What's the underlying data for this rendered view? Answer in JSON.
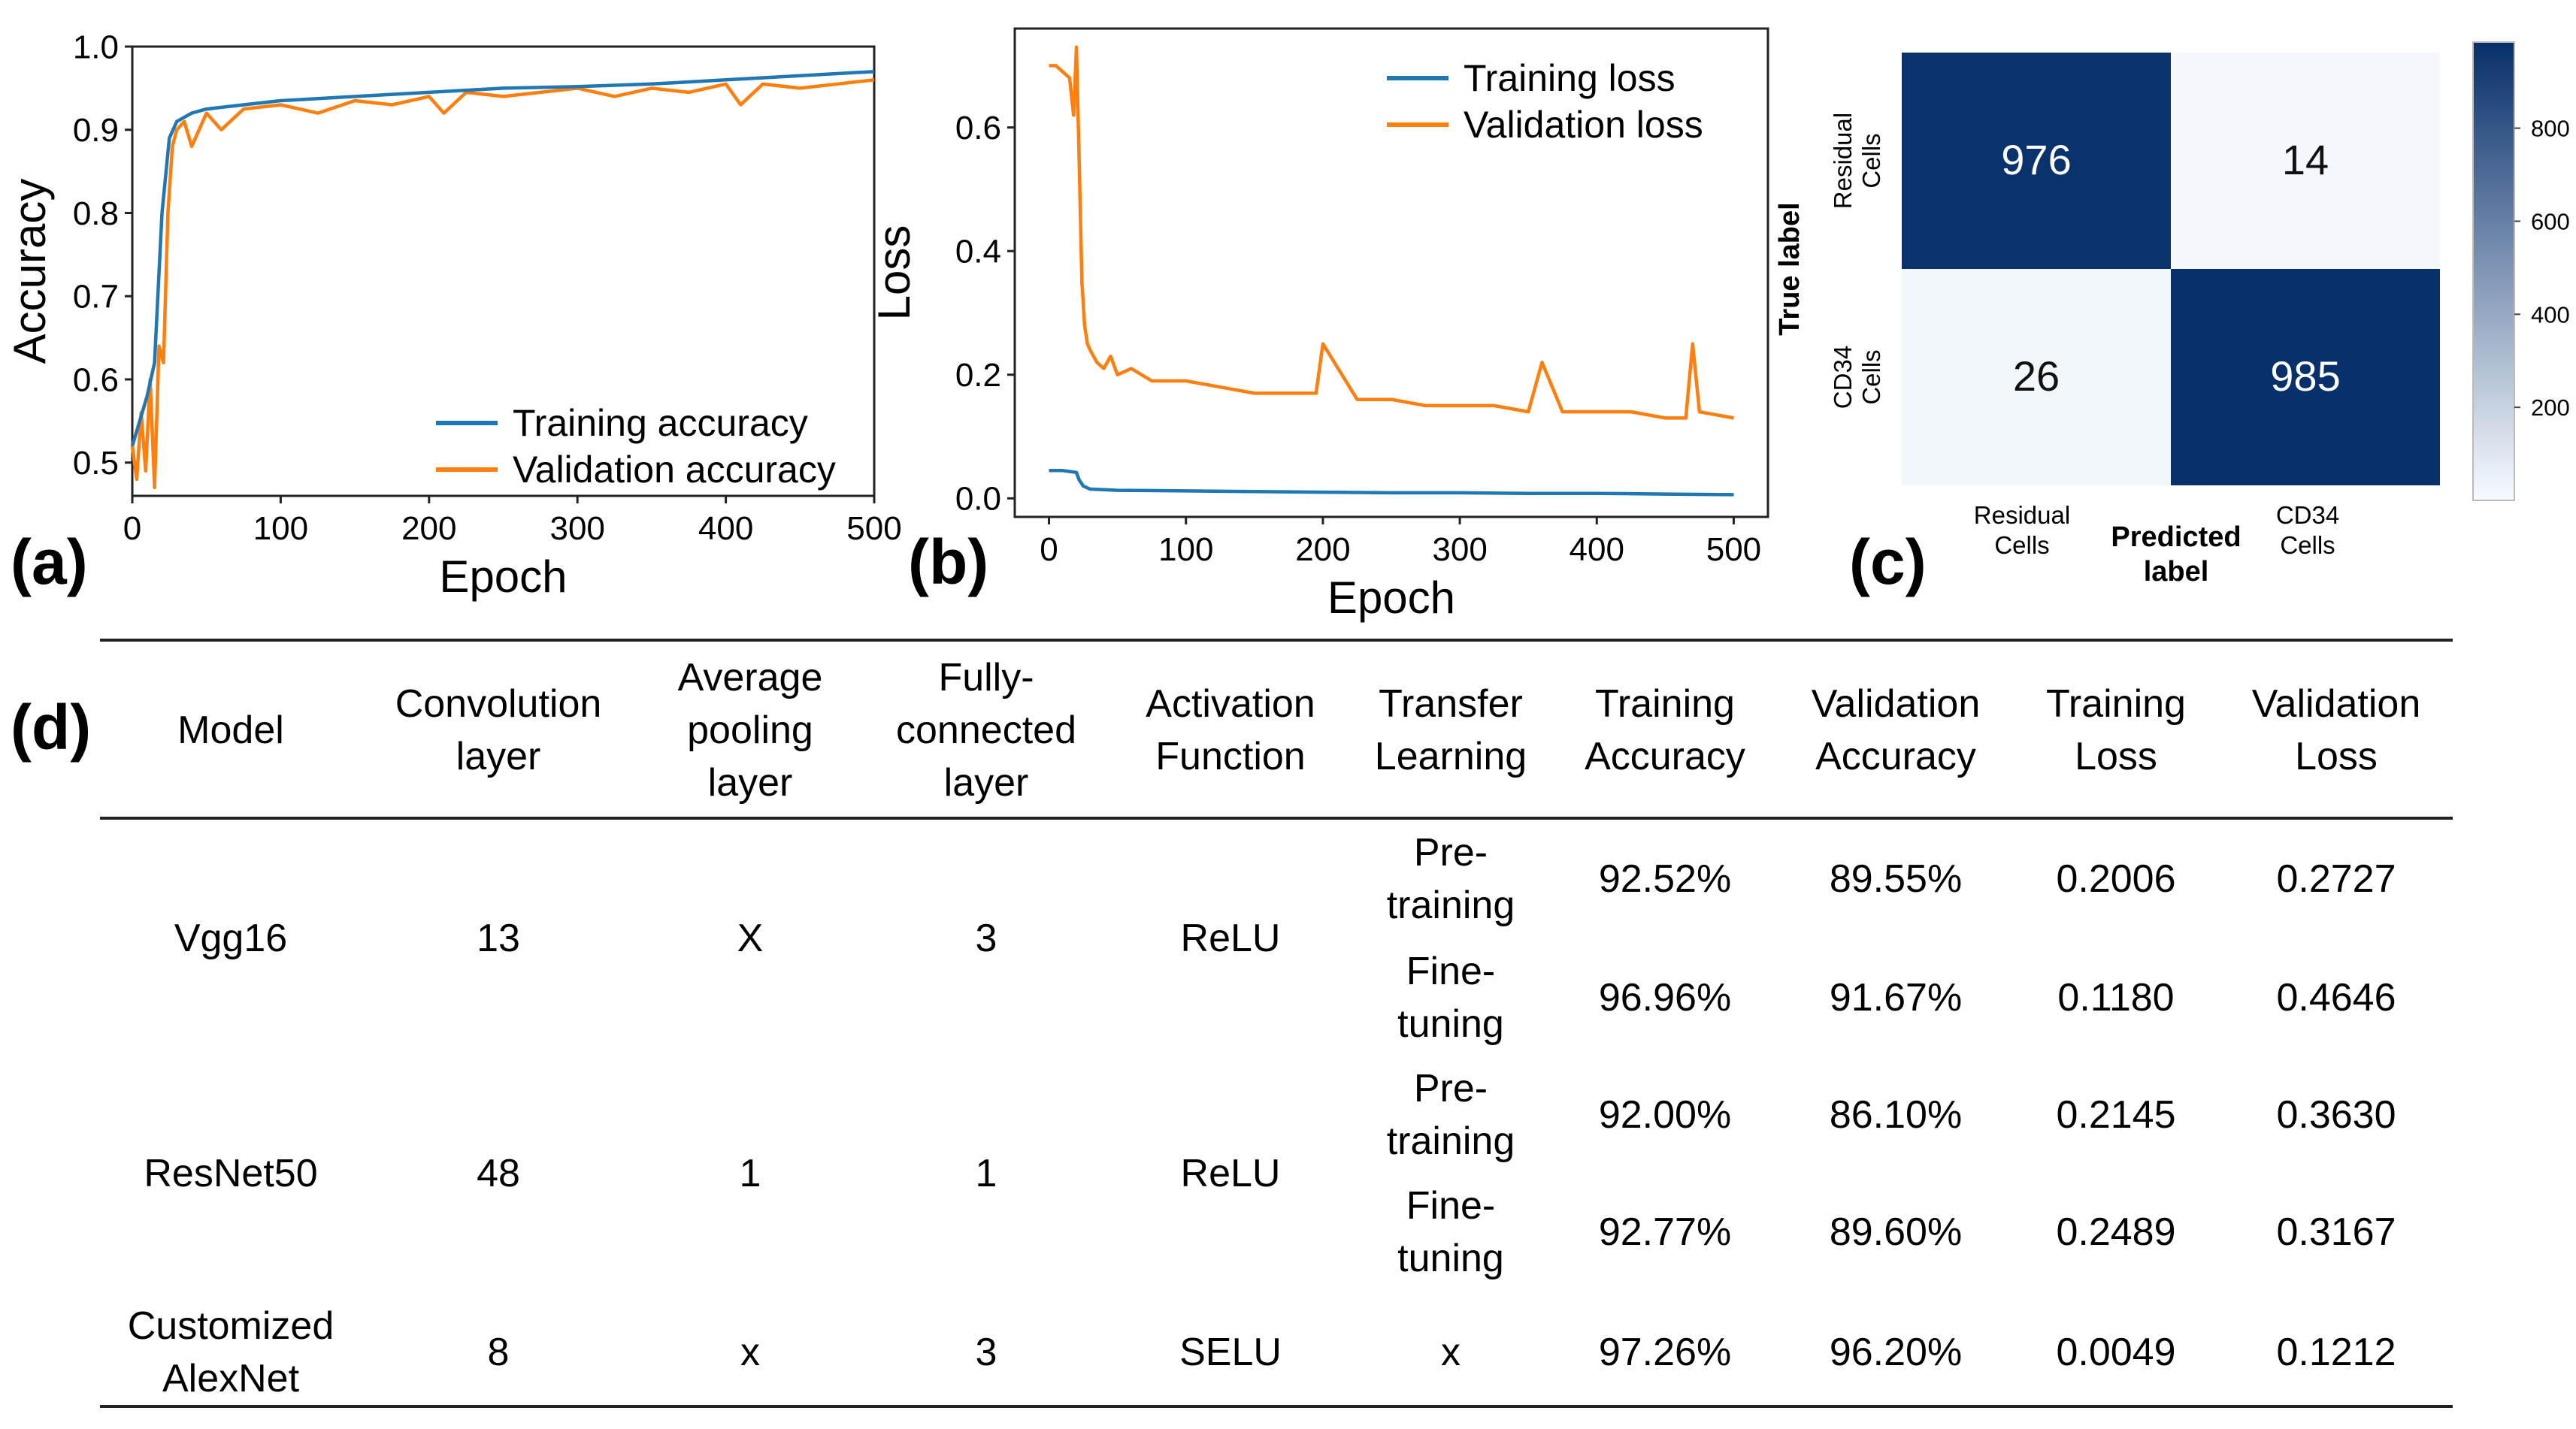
{
  "colors": {
    "train": "#1f77b4",
    "val": "#ff7f0e",
    "cm_dark": "#08306b",
    "cm_light": "#f7fbff"
  },
  "panel_labels": {
    "a": "(a)",
    "b": "(b)",
    "c": "(c)",
    "d": "(d)"
  },
  "chart_data": [
    {
      "id": "a",
      "type": "line",
      "xlabel": "Epoch",
      "ylabel": "Accuracy",
      "xlim": [
        0,
        500
      ],
      "ylim": [
        0.46,
        1.0
      ],
      "xticks": [
        0,
        100,
        200,
        300,
        400,
        500
      ],
      "yticks": [
        0.5,
        0.6,
        0.7,
        0.8,
        0.9,
        1.0
      ],
      "ytick_labels": [
        "0.5",
        "0.6",
        "0.7",
        "0.8",
        "0.9",
        "1.0"
      ],
      "legend": "bottom-right",
      "series": [
        {
          "name": "Training accuracy",
          "x": [
            0,
            5,
            10,
            15,
            20,
            25,
            30,
            40,
            50,
            75,
            100,
            150,
            200,
            250,
            300,
            350,
            400,
            450,
            500
          ],
          "y": [
            0.52,
            0.55,
            0.58,
            0.62,
            0.8,
            0.89,
            0.91,
            0.92,
            0.925,
            0.93,
            0.935,
            0.94,
            0.945,
            0.95,
            0.952,
            0.955,
            0.96,
            0.965,
            0.97
          ]
        },
        {
          "name": "Validation accuracy",
          "x": [
            0,
            3,
            6,
            9,
            12,
            15,
            18,
            21,
            24,
            27,
            30,
            35,
            40,
            50,
            60,
            75,
            100,
            125,
            150,
            175,
            200,
            210,
            225,
            250,
            275,
            300,
            325,
            350,
            375,
            400,
            410,
            425,
            450,
            475,
            500
          ],
          "y": [
            0.52,
            0.48,
            0.56,
            0.49,
            0.6,
            0.47,
            0.64,
            0.62,
            0.8,
            0.88,
            0.9,
            0.91,
            0.88,
            0.92,
            0.9,
            0.925,
            0.93,
            0.92,
            0.935,
            0.93,
            0.94,
            0.92,
            0.945,
            0.94,
            0.945,
            0.95,
            0.94,
            0.95,
            0.945,
            0.955,
            0.93,
            0.955,
            0.95,
            0.955,
            0.96
          ]
        }
      ]
    },
    {
      "id": "b",
      "type": "line",
      "xlabel": "Epoch",
      "ylabel": "Loss",
      "xlim": [
        -25,
        525
      ],
      "ylim": [
        -0.03,
        0.76
      ],
      "xticks": [
        0,
        100,
        200,
        300,
        400,
        500
      ],
      "yticks": [
        0.0,
        0.2,
        0.4,
        0.6
      ],
      "ytick_labels": [
        "0.0",
        "0.2",
        "0.4",
        "0.6"
      ],
      "legend": "top-right",
      "series": [
        {
          "name": "Training loss",
          "x": [
            0,
            10,
            20,
            22,
            25,
            30,
            40,
            50,
            100,
            150,
            200,
            250,
            300,
            350,
            400,
            450,
            500
          ],
          "y": [
            0.045,
            0.045,
            0.042,
            0.03,
            0.02,
            0.015,
            0.014,
            0.013,
            0.012,
            0.011,
            0.01,
            0.009,
            0.009,
            0.008,
            0.008,
            0.007,
            0.006
          ]
        },
        {
          "name": "Validation loss",
          "x": [
            0,
            5,
            10,
            15,
            18,
            20,
            22,
            24,
            26,
            28,
            30,
            35,
            40,
            45,
            50,
            60,
            75,
            100,
            125,
            150,
            175,
            195,
            200,
            225,
            250,
            275,
            300,
            325,
            350,
            360,
            375,
            400,
            425,
            450,
            465,
            470,
            475,
            500
          ],
          "y": [
            0.7,
            0.7,
            0.69,
            0.68,
            0.62,
            0.73,
            0.55,
            0.35,
            0.28,
            0.25,
            0.24,
            0.22,
            0.21,
            0.23,
            0.2,
            0.21,
            0.19,
            0.19,
            0.18,
            0.17,
            0.17,
            0.17,
            0.25,
            0.16,
            0.16,
            0.15,
            0.15,
            0.15,
            0.14,
            0.22,
            0.14,
            0.14,
            0.14,
            0.13,
            0.13,
            0.25,
            0.14,
            0.13
          ]
        }
      ]
    },
    {
      "id": "c",
      "type": "heatmap",
      "ylabel": "True label",
      "xlabel": "Predicted\nlabel",
      "row_labels": [
        "Residual\nCells",
        "CD34\nCells"
      ],
      "col_labels": [
        "Residual\nCells",
        "CD34\nCells"
      ],
      "values": [
        [
          976,
          14
        ],
        [
          26,
          985
        ]
      ],
      "colorbar_ticks": [
        200,
        400,
        600,
        800
      ],
      "colorbar_range": [
        0,
        985
      ]
    }
  ],
  "table": {
    "headers": [
      "Model",
      "Convolution\nlayer",
      "Average\npooling\nlayer",
      "Fully-\nconnected\nlayer",
      "Activation\nFunction",
      "Transfer\nLearning",
      "Training\nAccuracy",
      "Validation\nAccuracy",
      "Training\nLoss",
      "Validation\nLoss"
    ],
    "models": [
      {
        "model": "Vgg16",
        "conv": "13",
        "pool": "X",
        "fc": "3",
        "act": "ReLU",
        "rows": [
          {
            "transfer": "Pre-\ntraining",
            "train_acc": "92.52%",
            "val_acc": "89.55%",
            "train_loss": "0.2006",
            "val_loss": "0.2727"
          },
          {
            "transfer": "Fine-\ntuning",
            "train_acc": "96.96%",
            "val_acc": "91.67%",
            "train_loss": "0.1180",
            "val_loss": "0.4646"
          }
        ]
      },
      {
        "model": "ResNet50",
        "conv": "48",
        "pool": "1",
        "fc": "1",
        "act": "ReLU",
        "rows": [
          {
            "transfer": "Pre-\ntraining",
            "train_acc": "92.00%",
            "val_acc": "86.10%",
            "train_loss": "0.2145",
            "val_loss": "0.3630"
          },
          {
            "transfer": "Fine-\ntuning",
            "train_acc": "92.77%",
            "val_acc": "89.60%",
            "train_loss": "0.2489",
            "val_loss": "0.3167"
          }
        ]
      },
      {
        "model": "Customized\nAlexNet",
        "conv": "8",
        "pool": "x",
        "fc": "3",
        "act": "SELU",
        "rows": [
          {
            "transfer": "x",
            "train_acc": "97.26%",
            "val_acc": "96.20%",
            "train_loss": "0.0049",
            "val_loss": "0.1212"
          }
        ]
      }
    ]
  }
}
